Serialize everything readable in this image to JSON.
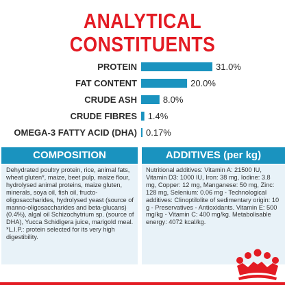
{
  "title_line1": "ANALYTICAL",
  "title_line2": "CONSTITUENTS",
  "chart_data": {
    "type": "bar",
    "orientation": "horizontal",
    "categories": [
      "PROTEIN",
      "FAT CONTENT",
      "CRUDE ASH",
      "CRUDE FIBRES",
      "OMEGA-3 FATTY ACID (DHA)"
    ],
    "values": [
      31.0,
      20.0,
      8.0,
      1.4,
      0.17
    ],
    "value_labels": [
      "31.0%",
      "20.0%",
      "8.0%",
      "1.4%",
      "0.17%"
    ],
    "unit": "%",
    "bar_color": "#1a93bf",
    "grid": false,
    "legend": "none"
  },
  "composition": {
    "header": "COMPOSITION",
    "text": "Dehydrated poultry protein, rice, animal fats, wheat gluten*, maize, beet pulp, maize flour, hydrolysed animal proteins, maize gluten, minerals, soya oil, fish oil, fructo-oligosaccharides, hydrolysed yeast (source of manno-oligosaccharides and beta-glucans) (0.4%), algal oil Schizochytrium sp. (source of DHA), Yucca Schidigera juice, marigold meal. *L.I.P.: protein selected for its very high digestibility."
  },
  "additives": {
    "header": "ADDITIVES (per kg)",
    "text": "Nutritional additives: Vitamin A: 21500 IU, Vitamin D3: 1000 IU, Iron: 38 mg, Iodine: 3.8 mg, Copper: 12 mg, Manganese: 50 mg, Zinc: 128 mg, Selenium: 0.06 mg - Technological additives: Clinoptilolite of sedimentary origin: 10 g - Preservatives - Antioxidants. Vitamin E: 500 mg/kg - Vitamin C: 400 mg/kg. Metabolisable energy: 4072 kcal/kg."
  },
  "colors": {
    "brand_red": "#e31b23",
    "accent_blue": "#1a93bf",
    "panel_background": "#e8f2f8"
  },
  "logo": {
    "icon": "crown-icon"
  }
}
